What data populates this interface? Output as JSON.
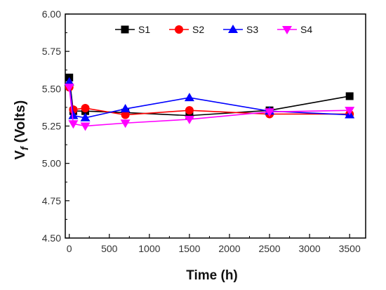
{
  "chart_data": {
    "type": "line",
    "xlabel": "Time (h)",
    "ylabel": {
      "main": "V",
      "sub": "f",
      "unit": " (Volts)"
    },
    "xlim": [
      -50,
      3700
    ],
    "ylim": [
      4.5,
      6.0
    ],
    "xticks": [
      0,
      500,
      1000,
      1500,
      2000,
      2500,
      3000,
      3500
    ],
    "yticks": [
      4.5,
      4.75,
      5.0,
      5.25,
      5.5,
      5.75,
      6.0
    ],
    "ytick_labels": [
      "4.50",
      "4.75",
      "5.00",
      "5.25",
      "5.50",
      "5.75",
      "6.00"
    ],
    "grid": false,
    "legend_position": "top",
    "series": [
      {
        "name": "S1",
        "color": "#000000",
        "marker": "square",
        "x": [
          0,
          50,
          200,
          700,
          1500,
          2500,
          3500
        ],
        "y": [
          5.575,
          5.35,
          5.35,
          5.34,
          5.32,
          5.355,
          5.45
        ]
      },
      {
        "name": "S2",
        "color": "#ff0000",
        "marker": "circle",
        "x": [
          0,
          50,
          200,
          700,
          1500,
          2500,
          3500
        ],
        "y": [
          5.51,
          5.36,
          5.37,
          5.325,
          5.355,
          5.33,
          5.33
        ]
      },
      {
        "name": "S3",
        "color": "#0000ff",
        "marker": "triangle-up",
        "x": [
          0,
          50,
          200,
          700,
          1500,
          2500,
          3500
        ],
        "y": [
          5.545,
          5.32,
          5.305,
          5.365,
          5.44,
          5.35,
          5.325
        ]
      },
      {
        "name": "S4",
        "color": "#ff00ff",
        "marker": "triangle-down",
        "x": [
          0,
          50,
          200,
          700,
          1500,
          2500,
          3500
        ],
        "y": [
          5.51,
          5.265,
          5.25,
          5.27,
          5.295,
          5.345,
          5.355
        ]
      }
    ]
  }
}
